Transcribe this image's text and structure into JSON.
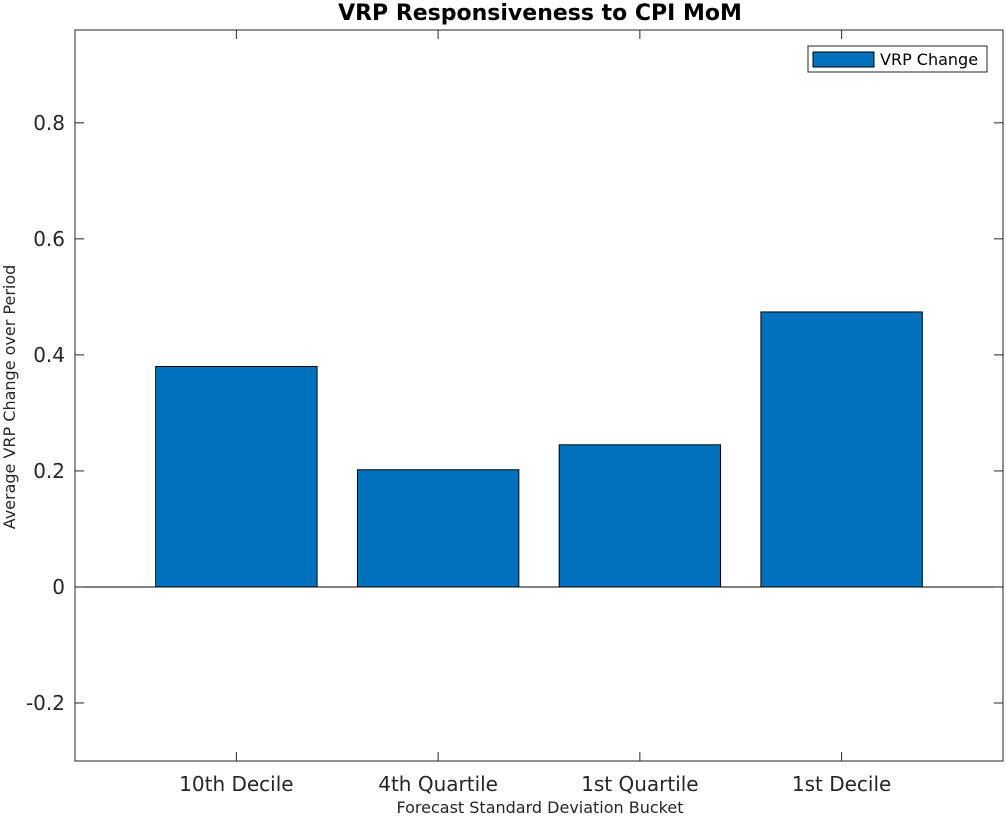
{
  "chart_data": {
    "type": "bar",
    "title": "VRP Responsiveness to CPI MoM",
    "xlabel": "Forecast Standard Deviation Bucket",
    "ylabel": "Average VRP Change over Period",
    "categories": [
      "10th Decile",
      "4th Quartile",
      "1st Quartile",
      "1st Decile"
    ],
    "series": [
      {
        "name": "VRP Change",
        "values": [
          0.38,
          0.202,
          0.245,
          0.474
        ]
      }
    ],
    "ylim": [
      -0.3,
      0.96
    ],
    "yticks": [
      -0.2,
      0,
      0.2,
      0.4,
      0.6,
      0.8
    ],
    "ytick_labels": [
      "-0.2",
      "0",
      "0.2",
      "0.4",
      "0.6",
      "0.8"
    ],
    "grid": false,
    "legend": "top-right",
    "colors": {
      "bar": "#0072BD",
      "bar_edge": "#000000",
      "axis": "#262626"
    }
  }
}
